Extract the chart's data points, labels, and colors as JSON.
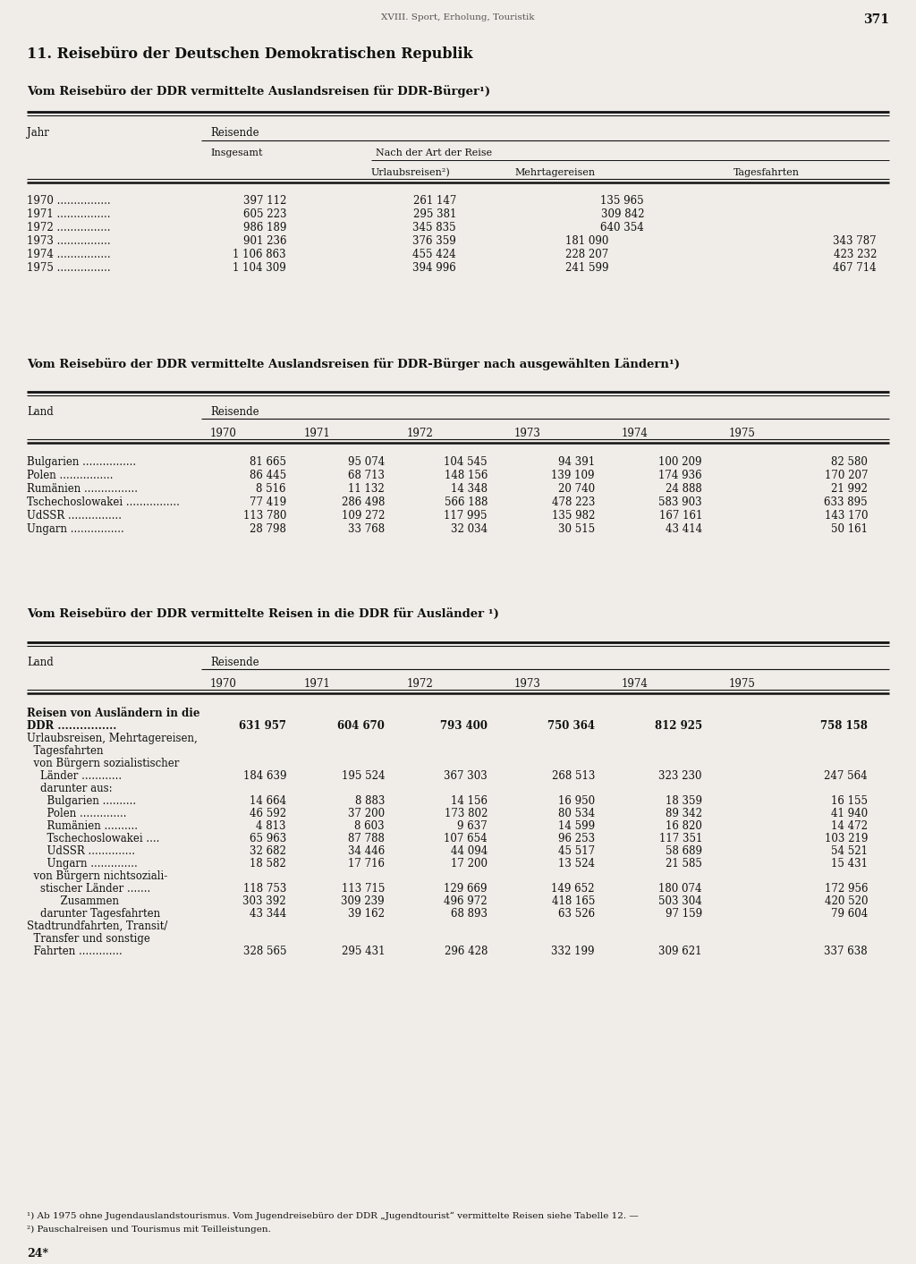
{
  "page_header": "XVIII. Sport, Erholung, Touristik",
  "page_number": "371",
  "section_title": "11. Reisebüro der Deutschen Demokratischen Republik",
  "table1_title": "Vom Reisebüro der DDR vermittelte Auslandsreisen für DDR-Bürger¹)",
  "table2_title": "Vom Reisebüro der DDR vermittelte Auslandsreisen für DDR-Bürger nach ausgewählten Ländern¹)",
  "table3_title": "Vom Reisebüro der DDR vermittelte Reisen in die DDR für Ausländer ¹)",
  "footnote1": "¹) Ab 1975 ohne Jugendauslandstourismus. Vom Jugendreisebüro der DDR „Jugendtourist“ vermittelte Reisen siehe Tabelle 12. —",
  "footnote2": "²) Pauschalreisen und Tourismus mit Teilleistungen.",
  "footer": "24*",
  "bg_color": "#f0ede8"
}
